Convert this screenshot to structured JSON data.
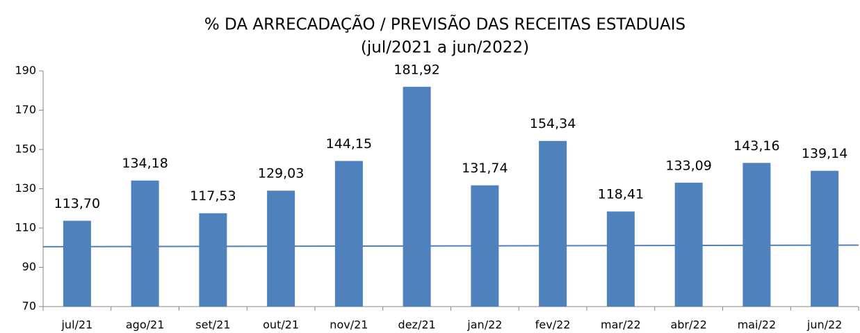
{
  "chart_data": {
    "type": "bar",
    "title": "% DA ARRECADAÇÃO / PREVISÃO DAS RECEITAS ESTADUAIS",
    "subtitle": "(jul/2021 a jun/2022)",
    "categories": [
      "jul/21",
      "ago/21",
      "set/21",
      "out/21",
      "nov/21",
      "dez/21",
      "jan/22",
      "fev/22",
      "mar/22",
      "abr/22",
      "mai/22",
      "jun/22"
    ],
    "values": [
      113.7,
      134.18,
      117.53,
      129.03,
      144.15,
      181.92,
      131.74,
      154.34,
      118.41,
      133.09,
      143.16,
      139.14
    ],
    "value_labels": [
      "113,70",
      "134,18",
      "117,53",
      "129,03",
      "144,15",
      "181,92",
      "131,74",
      "154,34",
      "118,41",
      "133,09",
      "143,16",
      "139,14"
    ],
    "color": "#4f81bd",
    "reference_line": {
      "values": [
        100.5,
        101.3
      ],
      "color": "#4f81bd"
    },
    "ylim": [
      70,
      190
    ],
    "yticks": [
      70,
      90,
      110,
      130,
      150,
      170,
      190
    ],
    "grid": false
  }
}
